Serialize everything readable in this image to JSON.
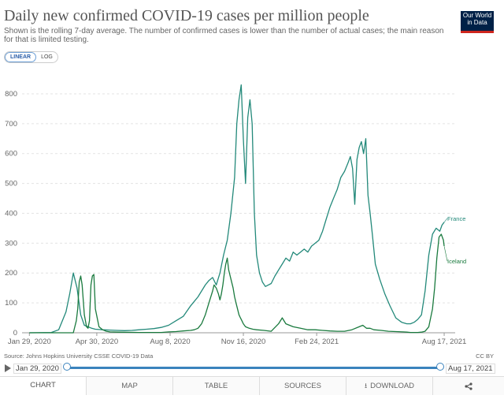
{
  "header": {
    "title": "Daily new confirmed COVID-19 cases per million people",
    "subtitle": "Shown is the rolling 7-day average. The number of confirmed cases is lower than the number of actual cases; the main reason for that is limited testing.",
    "logo_line1": "Our World",
    "logo_line2": "in Data"
  },
  "controls": {
    "linear_label": "LINEAR",
    "log_label": "LOG"
  },
  "footer": {
    "source": "Source: Johns Hopkins University CSSE COVID-19 Data",
    "license": "CC BY"
  },
  "timeline": {
    "start_label": "Jan 29, 2020",
    "end_label": "Aug 17, 2021",
    "start_position": 0,
    "end_position": 1
  },
  "tabs": [
    {
      "label": "CHART",
      "icon": ""
    },
    {
      "label": "MAP",
      "icon": ""
    },
    {
      "label": "TABLE",
      "icon": ""
    },
    {
      "label": "SOURCES",
      "icon": ""
    },
    {
      "label": "DOWNLOAD",
      "icon": "download-icon"
    },
    {
      "label": "",
      "icon": "share-icon"
    }
  ],
  "colors": {
    "france": "#23897a",
    "iceland": "#1a7a3e",
    "grid": "#e3e3e3",
    "axis": "#999999",
    "brand": "#002147",
    "accent": "#3b83bd"
  },
  "chart_data": {
    "type": "line",
    "title": "Daily new confirmed COVID-19 cases per million people",
    "xlabel": "",
    "ylabel": "",
    "ylim": [
      0,
      850
    ],
    "yticks": [
      0,
      100,
      200,
      300,
      400,
      500,
      600,
      700,
      800
    ],
    "xlim_days": [
      -10,
      581
    ],
    "xticks": [
      {
        "label": "Jan 29, 2020",
        "day": 0
      },
      {
        "label": "Apr 30, 2020",
        "day": 92
      },
      {
        "label": "Aug 8, 2020",
        "day": 192
      },
      {
        "label": "Nov 16, 2020",
        "day": 292
      },
      {
        "label": "Feb 24, 2021",
        "day": 392
      },
      {
        "label": "Aug 17, 2021",
        "day": 566
      }
    ],
    "series": [
      {
        "name": "France",
        "x": [
          0,
          30,
          40,
          45,
          50,
          55,
          60,
          65,
          70,
          75,
          80,
          85,
          90,
          100,
          110,
          120,
          130,
          140,
          150,
          160,
          170,
          180,
          190,
          200,
          210,
          220,
          230,
          240,
          245,
          250,
          255,
          260,
          265,
          270,
          275,
          280,
          283,
          286,
          289,
          292,
          295,
          298,
          301,
          304,
          307,
          310,
          314,
          318,
          322,
          326,
          330,
          335,
          340,
          345,
          350,
          355,
          360,
          365,
          370,
          375,
          380,
          385,
          390,
          395,
          400,
          405,
          410,
          415,
          420,
          425,
          430,
          435,
          438,
          441,
          444,
          447,
          450,
          453,
          456,
          459,
          462,
          465,
          468,
          472,
          478,
          485,
          492,
          500,
          508,
          515,
          520,
          525,
          530,
          535,
          540,
          545,
          550,
          555,
          560,
          563,
          566
        ],
        "y": [
          0,
          1,
          10,
          40,
          70,
          130,
          200,
          150,
          60,
          25,
          20,
          15,
          12,
          10,
          9,
          8,
          7,
          8,
          10,
          12,
          14,
          18,
          25,
          40,
          55,
          90,
          120,
          160,
          175,
          185,
          160,
          200,
          260,
          310,
          400,
          520,
          700,
          780,
          830,
          650,
          500,
          720,
          780,
          700,
          400,
          260,
          200,
          170,
          155,
          160,
          165,
          190,
          210,
          230,
          250,
          240,
          270,
          260,
          270,
          280,
          270,
          290,
          300,
          310,
          340,
          380,
          420,
          450,
          480,
          520,
          540,
          570,
          590,
          550,
          430,
          580,
          620,
          640,
          600,
          650,
          460,
          400,
          330,
          230,
          180,
          130,
          90,
          50,
          35,
          30,
          30,
          35,
          45,
          60,
          140,
          260,
          330,
          350,
          340,
          360,
          370
        ]
      },
      {
        "name": "Iceland",
        "x": [
          0,
          30,
          40,
          45,
          50,
          55,
          60,
          62,
          64,
          66,
          68,
          70,
          72,
          75,
          78,
          80,
          82,
          84,
          86,
          88,
          90,
          95,
          100,
          105,
          110,
          120,
          150,
          180,
          190,
          200,
          210,
          220,
          225,
          230,
          235,
          240,
          245,
          250,
          252,
          255,
          258,
          260,
          262,
          264,
          266,
          268,
          270,
          272,
          275,
          278,
          280,
          282,
          284,
          286,
          288,
          290,
          292,
          295,
          300,
          305,
          310,
          320,
          330,
          340,
          345,
          350,
          360,
          370,
          380,
          390,
          400,
          410,
          420,
          430,
          440,
          450,
          455,
          460,
          465,
          470,
          480,
          490,
          500,
          510,
          515,
          520,
          525,
          530,
          535,
          540,
          545,
          550,
          553,
          556,
          559,
          562,
          565,
          566
        ],
        "y": [
          0,
          0,
          0,
          0,
          0,
          0,
          0,
          20,
          40,
          80,
          170,
          190,
          160,
          60,
          20,
          15,
          40,
          160,
          190,
          195,
          80,
          20,
          10,
          5,
          3,
          2,
          1,
          1,
          3,
          4,
          6,
          8,
          10,
          15,
          30,
          60,
          100,
          140,
          160,
          150,
          130,
          110,
          130,
          160,
          200,
          230,
          250,
          210,
          180,
          150,
          120,
          100,
          80,
          60,
          50,
          40,
          30,
          20,
          15,
          12,
          10,
          8,
          5,
          30,
          50,
          30,
          20,
          15,
          10,
          10,
          8,
          6,
          5,
          5,
          10,
          20,
          25,
          15,
          15,
          10,
          8,
          5,
          4,
          3,
          2,
          1,
          1,
          1,
          2,
          5,
          20,
          80,
          150,
          250,
          320,
          330,
          310,
          290
        ]
      }
    ]
  }
}
